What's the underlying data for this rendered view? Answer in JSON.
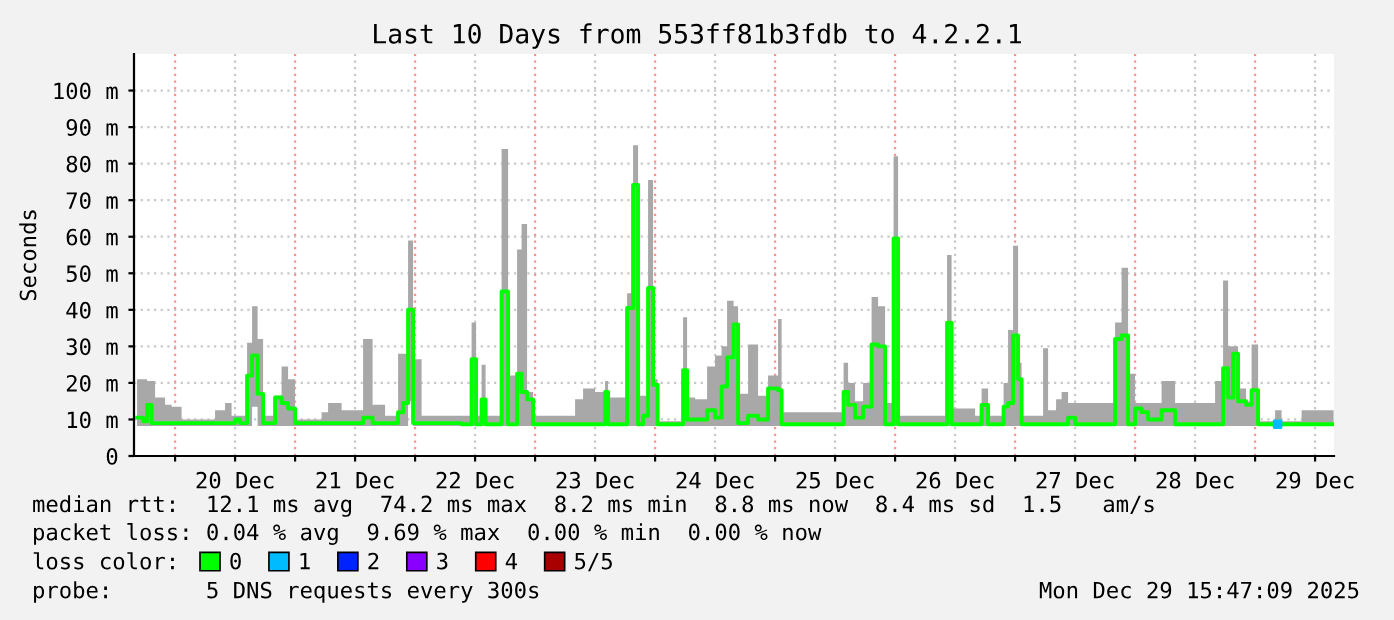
{
  "chart_data": {
    "type": "step",
    "title": "Last 10 Days from 553ff81b3fdb to 4.2.2.1",
    "ylabel": "Seconds",
    "xlim": [
      "2025-12-19T15:47",
      "2025-12-29T15:47"
    ],
    "xticks": [
      {
        "value": "2025-12-20T00:00",
        "label": null
      },
      {
        "value": "2025-12-20T12:00",
        "label": "20 Dec"
      },
      {
        "value": "2025-12-21T00:00",
        "label": null
      },
      {
        "value": "2025-12-21T12:00",
        "label": "21 Dec"
      },
      {
        "value": "2025-12-22T00:00",
        "label": null
      },
      {
        "value": "2025-12-22T12:00",
        "label": "22 Dec"
      },
      {
        "value": "2025-12-23T00:00",
        "label": null
      },
      {
        "value": "2025-12-23T12:00",
        "label": "23 Dec"
      },
      {
        "value": "2025-12-24T00:00",
        "label": null
      },
      {
        "value": "2025-12-24T12:00",
        "label": "24 Dec"
      },
      {
        "value": "2025-12-25T00:00",
        "label": null
      },
      {
        "value": "2025-12-25T12:00",
        "label": "25 Dec"
      },
      {
        "value": "2025-12-26T00:00",
        "label": null
      },
      {
        "value": "2025-12-26T12:00",
        "label": "26 Dec"
      },
      {
        "value": "2025-12-27T00:00",
        "label": null
      },
      {
        "value": "2025-12-27T12:00",
        "label": "27 Dec"
      },
      {
        "value": "2025-12-28T00:00",
        "label": null
      },
      {
        "value": "2025-12-28T12:00",
        "label": "28 Dec"
      },
      {
        "value": "2025-12-29T00:00",
        "label": null
      },
      {
        "value": "2025-12-29T12:00",
        "label": "29 Dec"
      }
    ],
    "ylim": [
      0,
      110
    ],
    "yticks": [
      0,
      {
        "value": 10,
        "label": "10 m"
      },
      {
        "value": 20,
        "label": "20 m"
      },
      {
        "value": 30,
        "label": "30 m"
      },
      {
        "value": 40,
        "label": "40 m"
      },
      {
        "value": 50,
        "label": "50 m"
      },
      {
        "value": 60,
        "label": "60 m"
      },
      {
        "value": 70,
        "label": "70 m"
      },
      {
        "value": 80,
        "label": "80 m"
      },
      {
        "value": 90,
        "label": "90 m"
      },
      {
        "value": 100,
        "label": "100 m"
      }
    ],
    "grid": true,
    "legend": "bottom",
    "legend_title": "loss color:",
    "series": [
      {
        "name": "0",
        "color": "#00ff00",
        "x": [
          "2025-12-19T16:24",
          "2025-12-19T17:36",
          "2025-12-19T18:24",
          "2025-12-19T19:18",
          "2025-12-19T20:00",
          "2025-12-19T22:00",
          "2025-12-19T23:18",
          "2025-12-20T01:18",
          "2025-12-20T06:30",
          "2025-12-20T08:00",
          "2025-12-20T10:00",
          "2025-12-20T11:18",
          "2025-12-20T12:00",
          "2025-12-20T13:00",
          "2025-12-20T14:24",
          "2025-12-20T15:24",
          "2025-12-20T16:30",
          "2025-12-20T17:36",
          "2025-12-20T20:00",
          "2025-12-20T21:18",
          "2025-12-20T22:36",
          "2025-12-21T00:00",
          "2025-12-21T03:18",
          "2025-12-21T05:18",
          "2025-12-21T06:36",
          "2025-12-21T09:18",
          "2025-12-21T13:36",
          "2025-12-21T15:30",
          "2025-12-21T18:00",
          "2025-12-21T20:36",
          "2025-12-21T21:36",
          "2025-12-21T22:36",
          "2025-12-21T23:36",
          "2025-12-22T01:18",
          "2025-12-22T07:18",
          "2025-12-22T09:18",
          "2025-12-22T11:18",
          "2025-12-22T12:12",
          "2025-12-22T13:18",
          "2025-12-22T14:06",
          "2025-12-22T17:18",
          "2025-12-22T18:36",
          "2025-12-22T20:24",
          "2025-12-22T21:18",
          "2025-12-22T22:24",
          "2025-12-22T23:36",
          "2025-12-23T06:36",
          "2025-12-23T08:00",
          "2025-12-23T09:36",
          "2025-12-23T12:00",
          "2025-12-23T14:00",
          "2025-12-23T14:36",
          "2025-12-23T18:24",
          "2025-12-23T19:36",
          "2025-12-23T20:36",
          "2025-12-23T21:36",
          "2025-12-23T22:36",
          "2025-12-23T23:36",
          "2025-12-24T00:30",
          "2025-12-24T04:06",
          "2025-12-24T05:36",
          "2025-12-24T06:24",
          "2025-12-24T08:00",
          "2025-12-24T10:24",
          "2025-12-24T12:00",
          "2025-12-24T13:18",
          "2025-12-24T14:24",
          "2025-12-24T15:42",
          "2025-12-24T16:36",
          "2025-12-24T18:36",
          "2025-12-24T20:36",
          "2025-12-24T22:36",
          "2025-12-25T00:36",
          "2025-12-25T01:18",
          "2025-12-25T12:00",
          "2025-12-25T13:42",
          "2025-12-25T14:36",
          "2025-12-25T16:00",
          "2025-12-25T17:36",
          "2025-12-25T19:18",
          "2025-12-25T20:36",
          "2025-12-25T22:00",
          "2025-12-25T23:42",
          "2025-12-26T00:36",
          "2025-12-26T08:36",
          "2025-12-26T10:24",
          "2025-12-26T11:18",
          "2025-12-26T16:00",
          "2025-12-26T17:18",
          "2025-12-26T18:36",
          "2025-12-26T21:42",
          "2025-12-26T22:36",
          "2025-12-26T23:36",
          "2025-12-27T00:36",
          "2025-12-27T01:18",
          "2025-12-27T05:36",
          "2025-12-27T06:36",
          "2025-12-27T08:12",
          "2025-12-27T09:18",
          "2025-12-27T10:36",
          "2025-12-27T12:00",
          "2025-12-27T18:36",
          "2025-12-27T20:00",
          "2025-12-27T21:18",
          "2025-12-27T22:36",
          "2025-12-28T00:00",
          "2025-12-28T01:18",
          "2025-12-28T02:36",
          "2025-12-28T05:18",
          "2025-12-28T08:00",
          "2025-12-28T16:00",
          "2025-12-28T17:36",
          "2025-12-28T18:36",
          "2025-12-28T19:36",
          "2025-12-28T20:36",
          "2025-12-28T22:12",
          "2025-12-28T23:18",
          "2025-12-29T00:36",
          "2025-12-29T04:00",
          "2025-12-29T05:18",
          "2025-12-29T09:18",
          "2025-12-29T15:42"
        ],
        "values": [
          10.5,
          9.5,
          14,
          9,
          9,
          9,
          9,
          9,
          9,
          9,
          9,
          9,
          10,
          9,
          22,
          27.5,
          17,
          9,
          16,
          14.5,
          13,
          9,
          9,
          9,
          9,
          9,
          10.5,
          9,
          9,
          12,
          14.5,
          40,
          9,
          9,
          9,
          8.7,
          26.5,
          8.7,
          15.5,
          8.7,
          45,
          8.7,
          22.5,
          17.5,
          15.5,
          8.7,
          8.7,
          8.7,
          8.7,
          8.7,
          17.5,
          8.7,
          40.5,
          74.2,
          8.7,
          11,
          46,
          19.5,
          8.7,
          8.7,
          23.5,
          10,
          10,
          12.5,
          10.5,
          19,
          27,
          36,
          9,
          11,
          10,
          18.5,
          18,
          8.7,
          8.7,
          17.5,
          14,
          10.5,
          13.5,
          30.5,
          30,
          8.7,
          59.5,
          8.7,
          8.7,
          36.5,
          8.7,
          8.7,
          14,
          8.7,
          13.5,
          14.5,
          33,
          21,
          8.7,
          8.7,
          8.7,
          8.7,
          8.7,
          10.5,
          8.7,
          8.7,
          32,
          33,
          8.7,
          13,
          12,
          10,
          12.5,
          8.7,
          8.7,
          24,
          16,
          28,
          15,
          14,
          18,
          8.7,
          8.7,
          8.7,
          8.7,
          8.7
        ],
        "lower": [
          8.2,
          8.2,
          8.2,
          8.2,
          8.2,
          8.2,
          8.2,
          8.2,
          8.2,
          8.2,
          8.2,
          8.2,
          8.2,
          8.2,
          8.2,
          13.5,
          8.2,
          8.2,
          8.2,
          8.2,
          8.2,
          8.2,
          8.2,
          8.2,
          8.2,
          8.2,
          8.2,
          8.2,
          8.2,
          8.2,
          8.2,
          15,
          8.2,
          8.2,
          8.2,
          8.2,
          8.2,
          8.2,
          8.2,
          8.2,
          8.2,
          8.2,
          8.2,
          8.2,
          8.2,
          8.2,
          8.2,
          8.2,
          8.2,
          8.2,
          8.2,
          8.2,
          8.2,
          8.2,
          8.2,
          8.2,
          8.2,
          8.2,
          8.2,
          8.2,
          8.2,
          8.2,
          8.2,
          8.2,
          8.2,
          8.2,
          8.2,
          8.2,
          8.2,
          8.2,
          8.2,
          8.2,
          8.2,
          8.2,
          8.2,
          8.2,
          8.2,
          8.2,
          8.2,
          8.2,
          8.2,
          8.2,
          8.2,
          8.2,
          8.2,
          8.2,
          8.2,
          8.2,
          8.2,
          8.2,
          8.2,
          8.2,
          8.2,
          8.2,
          8.2,
          8.2,
          8.2,
          8.2,
          8.2,
          8.2,
          8.2,
          8.2,
          8.2,
          8.2,
          8.2,
          8.2,
          8.2,
          8.2,
          8.2,
          8.2,
          8.2,
          8.2,
          8.2,
          8.2,
          8.2,
          8.2,
          8.2,
          8.2,
          8.2,
          8.2,
          8.2,
          8.2
        ],
        "upper": [
          21,
          21,
          20.5,
          20.5,
          16,
          14,
          13.5,
          10,
          10,
          12.5,
          14.5,
          11,
          11,
          11,
          31,
          41,
          32,
          11,
          16.5,
          24.5,
          21,
          10,
          10,
          12,
          14.5,
          12.5,
          32,
          14,
          11,
          28,
          28,
          59,
          26.5,
          11,
          11,
          11,
          36.5,
          11,
          25,
          11,
          84,
          22,
          56.5,
          63.5,
          17.5,
          11,
          11,
          15.5,
          18.5,
          17.5,
          20.5,
          16,
          44.5,
          85,
          16.5,
          16.5,
          75.5,
          21,
          9.5,
          9.5,
          38,
          16,
          15.5,
          24.5,
          27.5,
          30,
          42.5,
          41,
          17,
          30.5,
          16.5,
          22,
          37.5,
          12,
          12,
          25.5,
          20,
          15,
          20,
          43.5,
          41,
          14.5,
          82,
          11,
          11,
          55,
          13,
          11,
          18.5,
          11,
          20,
          34.5,
          57.5,
          25.5,
          11,
          29.5,
          12.5,
          15.5,
          17.5,
          14.5,
          14.5,
          14.5,
          36.5,
          51.5,
          22.5,
          14.5,
          14.5,
          14.5,
          20.5,
          14.5,
          20.5,
          48,
          30,
          30,
          18.5,
          15,
          30.5,
          9.5,
          12.5,
          9.5,
          12.5,
          12.5
        ]
      },
      {
        "name": "1",
        "color": "#00bbff",
        "type": "scatter",
        "x": [
          "2025-12-29T04:30"
        ],
        "values": [
          8.7
        ]
      },
      {
        "name": "2",
        "color": "#0022ff",
        "type": "scatter"
      },
      {
        "name": "3",
        "color": "#8a00ff",
        "type": "scatter"
      },
      {
        "name": "4",
        "color": "#ff0000",
        "type": "scatter"
      },
      {
        "name": "5/5",
        "color": "#a80000",
        "type": "scatter"
      }
    ],
    "annotations": [
      "median rtt:  12.1 ms avg  74.2 ms max  8.2 ms min  8.8 ms now  8.4 ms sd  1.5   am/s",
      "packet loss: 0.04 % avg  9.69 % max  0.00 % min  0.00 % now",
      "probe:       5 DNS requests every 300s",
      "Mon Dec 29 15:47:09 2025"
    ]
  }
}
